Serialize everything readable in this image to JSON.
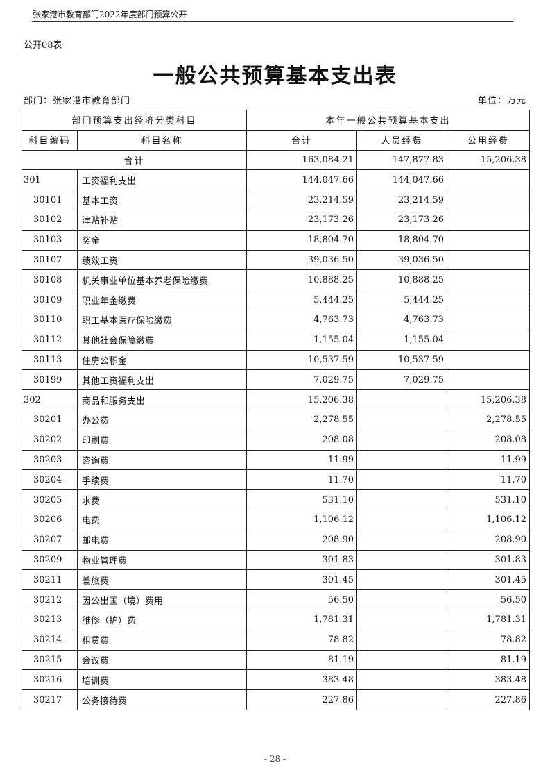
{
  "header": {
    "running_title": "张家港市教育部门2022年度部门预算公开"
  },
  "table_number": "公开08表",
  "title": "一般公共预算基本支出表",
  "department": "部门：张家港市教育部门",
  "unit": "单位：万元",
  "table": {
    "group_headers": [
      "部门预算支出经济分类科目",
      "本年一般公共预算基本支出"
    ],
    "columns": [
      "科目编码",
      "科目名称",
      "合计",
      "人员经费",
      "公用经费"
    ],
    "total": {
      "label": "合计",
      "total": "163,084.21",
      "personnel": "147,877.83",
      "public": "15,206.38"
    },
    "rows": [
      {
        "code": "301",
        "name": "工资福利支出",
        "total": "144,047.66",
        "personnel": "144,047.66",
        "public": "",
        "level": 1
      },
      {
        "code": "30101",
        "name": "基本工资",
        "total": "23,214.59",
        "personnel": "23,214.59",
        "public": "",
        "level": 2
      },
      {
        "code": "30102",
        "name": "津贴补贴",
        "total": "23,173.26",
        "personnel": "23,173.26",
        "public": "",
        "level": 2
      },
      {
        "code": "30103",
        "name": "奖金",
        "total": "18,804.70",
        "personnel": "18,804.70",
        "public": "",
        "level": 2
      },
      {
        "code": "30107",
        "name": "绩效工资",
        "total": "39,036.50",
        "personnel": "39,036.50",
        "public": "",
        "level": 2
      },
      {
        "code": "30108",
        "name": "机关事业单位基本养老保险缴费",
        "total": "10,888.25",
        "personnel": "10,888.25",
        "public": "",
        "level": 2
      },
      {
        "code": "30109",
        "name": "职业年金缴费",
        "total": "5,444.25",
        "personnel": "5,444.25",
        "public": "",
        "level": 2
      },
      {
        "code": "30110",
        "name": "职工基本医疗保险缴费",
        "total": "4,763.73",
        "personnel": "4,763.73",
        "public": "",
        "level": 2
      },
      {
        "code": "30112",
        "name": "其他社会保障缴费",
        "total": "1,155.04",
        "personnel": "1,155.04",
        "public": "",
        "level": 2
      },
      {
        "code": "30113",
        "name": "住房公积金",
        "total": "10,537.59",
        "personnel": "10,537.59",
        "public": "",
        "level": 2
      },
      {
        "code": "30199",
        "name": "其他工资福利支出",
        "total": "7,029.75",
        "personnel": "7,029.75",
        "public": "",
        "level": 2
      },
      {
        "code": "302",
        "name": "商品和服务支出",
        "total": "15,206.38",
        "personnel": "",
        "public": "15,206.38",
        "level": 1
      },
      {
        "code": "30201",
        "name": "办公费",
        "total": "2,278.55",
        "personnel": "",
        "public": "2,278.55",
        "level": 2
      },
      {
        "code": "30202",
        "name": "印刷费",
        "total": "208.08",
        "personnel": "",
        "public": "208.08",
        "level": 2
      },
      {
        "code": "30203",
        "name": "咨询费",
        "total": "11.99",
        "personnel": "",
        "public": "11.99",
        "level": 2
      },
      {
        "code": "30204",
        "name": "手续费",
        "total": "11.70",
        "personnel": "",
        "public": "11.70",
        "level": 2
      },
      {
        "code": "30205",
        "name": "水费",
        "total": "531.10",
        "personnel": "",
        "public": "531.10",
        "level": 2
      },
      {
        "code": "30206",
        "name": "电费",
        "total": "1,106.12",
        "personnel": "",
        "public": "1,106.12",
        "level": 2
      },
      {
        "code": "30207",
        "name": "邮电费",
        "total": "208.90",
        "personnel": "",
        "public": "208.90",
        "level": 2
      },
      {
        "code": "30209",
        "name": "物业管理费",
        "total": "301.83",
        "personnel": "",
        "public": "301.83",
        "level": 2
      },
      {
        "code": "30211",
        "name": "差旅费",
        "total": "301.45",
        "personnel": "",
        "public": "301.45",
        "level": 2
      },
      {
        "code": "30212",
        "name": "因公出国（境）费用",
        "total": "56.50",
        "personnel": "",
        "public": "56.50",
        "level": 2
      },
      {
        "code": "30213",
        "name": "维修（护）费",
        "total": "1,781.31",
        "personnel": "",
        "public": "1,781.31",
        "level": 2
      },
      {
        "code": "30214",
        "name": "租赁费",
        "total": "78.82",
        "personnel": "",
        "public": "78.82",
        "level": 2
      },
      {
        "code": "30215",
        "name": "会议费",
        "total": "81.19",
        "personnel": "",
        "public": "81.19",
        "level": 2
      },
      {
        "code": "30216",
        "name": "培训费",
        "total": "383.48",
        "personnel": "",
        "public": "383.48",
        "level": 2
      },
      {
        "code": "30217",
        "name": "公务接待费",
        "total": "227.86",
        "personnel": "",
        "public": "227.86",
        "level": 2
      }
    ]
  },
  "footer": {
    "page_number": "- 28 -"
  }
}
